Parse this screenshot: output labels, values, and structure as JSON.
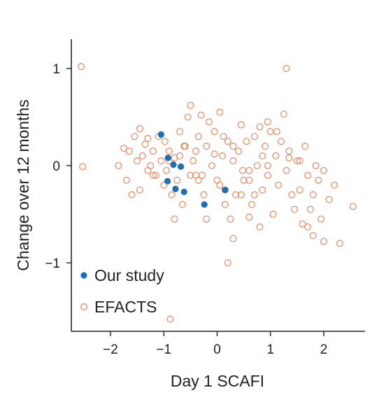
{
  "chart_data": {
    "type": "scatter",
    "xlabel": "Day 1 SCAFI",
    "ylabel": "Change over 12 months",
    "xlim": [
      -2.7,
      2.75
    ],
    "ylim": [
      -1.7,
      1.3
    ],
    "xticks": [
      -2,
      -1,
      0,
      1,
      2
    ],
    "xtick_labels": [
      "−2",
      "−1",
      "0",
      "1",
      "2"
    ],
    "yticks": [
      -1,
      0,
      1
    ],
    "ytick_labels": [
      "−1",
      "0",
      "1"
    ],
    "grid": false,
    "legend_position": "bottom-left",
    "series": [
      {
        "name": "EFACTS",
        "marker": "open-circle",
        "color": "#e0906a",
        "points": [
          [
            -2.55,
            1.02
          ],
          [
            -2.52,
            -0.01
          ],
          [
            1.3,
            1.0
          ],
          [
            -1.75,
            0.18
          ],
          [
            -1.5,
            0.05
          ],
          [
            -1.45,
            0.38
          ],
          [
            -1.4,
            0.1
          ],
          [
            -1.35,
            0.22
          ],
          [
            -1.3,
            -0.05
          ],
          [
            -1.25,
            0.0
          ],
          [
            -1.2,
            0.15
          ],
          [
            -1.15,
            -0.1
          ],
          [
            -1.1,
            0.3
          ],
          [
            -1.05,
            0.05
          ],
          [
            -1.0,
            -0.2
          ],
          [
            -0.98,
            0.25
          ],
          [
            -0.95,
            -0.05
          ],
          [
            -0.9,
            0.15
          ],
          [
            -0.85,
            -0.3
          ],
          [
            -0.8,
            0.08
          ],
          [
            -0.75,
            -0.15
          ],
          [
            -0.7,
            0.1
          ],
          [
            -0.65,
            -0.4
          ],
          [
            -0.6,
            0.2
          ],
          [
            -0.55,
            0.5
          ],
          [
            -0.5,
            0.62
          ],
          [
            -0.45,
            0.05
          ],
          [
            -0.4,
            -0.1
          ],
          [
            -0.35,
            0.3
          ],
          [
            -0.3,
            0.52
          ],
          [
            -0.25,
            -0.3
          ],
          [
            -0.2,
            0.2
          ],
          [
            -0.15,
            0.45
          ],
          [
            -0.1,
            0.0
          ],
          [
            -0.05,
            0.35
          ],
          [
            0.0,
            -0.15
          ],
          [
            0.05,
            0.55
          ],
          [
            0.1,
            0.1
          ],
          [
            0.15,
            -0.25
          ],
          [
            0.2,
            0.25
          ],
          [
            0.25,
            -0.55
          ],
          [
            0.3,
            0.05
          ],
          [
            0.35,
            -0.3
          ],
          [
            0.4,
            0.15
          ],
          [
            0.45,
            0.42
          ],
          [
            0.5,
            -0.15
          ],
          [
            0.55,
            0.25
          ],
          [
            0.6,
            -0.05
          ],
          [
            0.65,
            -0.4
          ],
          [
            0.7,
            0.3
          ],
          [
            0.75,
            0.0
          ],
          [
            0.8,
            0.4
          ],
          [
            0.85,
            -0.25
          ],
          [
            0.9,
            0.2
          ],
          [
            0.95,
            -0.1
          ],
          [
            1.0,
            0.35
          ],
          [
            1.05,
            -0.5
          ],
          [
            1.1,
            0.1
          ],
          [
            1.15,
            -0.2
          ],
          [
            1.2,
            0.25
          ],
          [
            1.25,
            0.53
          ],
          [
            1.3,
            -0.05
          ],
          [
            1.35,
            0.15
          ],
          [
            1.4,
            -0.3
          ],
          [
            1.45,
            -0.45
          ],
          [
            1.5,
            0.05
          ],
          [
            1.55,
            -0.25
          ],
          [
            1.6,
            -0.6
          ],
          [
            1.65,
            0.2
          ],
          [
            1.7,
            -0.1
          ],
          [
            1.75,
            -0.45
          ],
          [
            1.8,
            -0.3
          ],
          [
            1.85,
            0.0
          ],
          [
            1.9,
            -0.15
          ],
          [
            1.95,
            -0.55
          ],
          [
            2.0,
            -0.05
          ],
          [
            2.1,
            -0.35
          ],
          [
            2.2,
            -0.2
          ],
          [
            2.3,
            -0.8
          ],
          [
            2.55,
            -0.42
          ],
          [
            -1.85,
            0.0
          ],
          [
            -1.6,
            -0.3
          ],
          [
            -1.55,
            0.3
          ],
          [
            -1.7,
            -0.15
          ],
          [
            -0.8,
            -0.55
          ],
          [
            -0.5,
            -0.1
          ],
          [
            -0.2,
            -0.55
          ],
          [
            0.2,
            -1.0
          ],
          [
            0.3,
            -0.75
          ],
          [
            0.45,
            -0.3
          ],
          [
            -0.88,
            -1.58
          ],
          [
            1.8,
            -0.72
          ],
          [
            1.7,
            -0.63
          ],
          [
            2.0,
            -0.78
          ],
          [
            0.8,
            -0.63
          ],
          [
            0.6,
            -0.53
          ],
          [
            -0.62,
            0.2
          ],
          [
            -0.9,
            0.05
          ],
          [
            -0.7,
            0.35
          ],
          [
            -1.2,
            -0.1
          ],
          [
            -1.3,
            0.28
          ],
          [
            -0.4,
            0.15
          ],
          [
            -0.28,
            -0.1
          ],
          [
            0.05,
            -0.2
          ],
          [
            0.12,
            0.3
          ],
          [
            0.48,
            -0.05
          ],
          [
            0.95,
            0.45
          ],
          [
            1.12,
            0.35
          ],
          [
            1.35,
            0.08
          ],
          [
            -1.65,
            0.15
          ],
          [
            -0.05,
            0.12
          ],
          [
            0.3,
            0.2
          ],
          [
            0.7,
            -0.3
          ],
          [
            0.85,
            0.1
          ],
          [
            1.55,
            0.05
          ],
          [
            -1.45,
            -0.25
          ],
          [
            0.6,
            -0.15
          ],
          [
            -0.35,
            -0.15
          ],
          [
            0.15,
            -0.4
          ],
          [
            0.95,
            0.0
          ]
        ]
      },
      {
        "name": "Our study",
        "marker": "filled-circle",
        "color": "#1f6fb2",
        "points": [
          [
            -1.05,
            0.32
          ],
          [
            -0.92,
            0.08
          ],
          [
            -0.82,
            0.01
          ],
          [
            -0.68,
            -0.01
          ],
          [
            -0.93,
            -0.16
          ],
          [
            -0.78,
            -0.24
          ],
          [
            -0.62,
            -0.27
          ],
          [
            -0.24,
            -0.4
          ],
          [
            0.15,
            -0.25
          ]
        ]
      }
    ]
  }
}
